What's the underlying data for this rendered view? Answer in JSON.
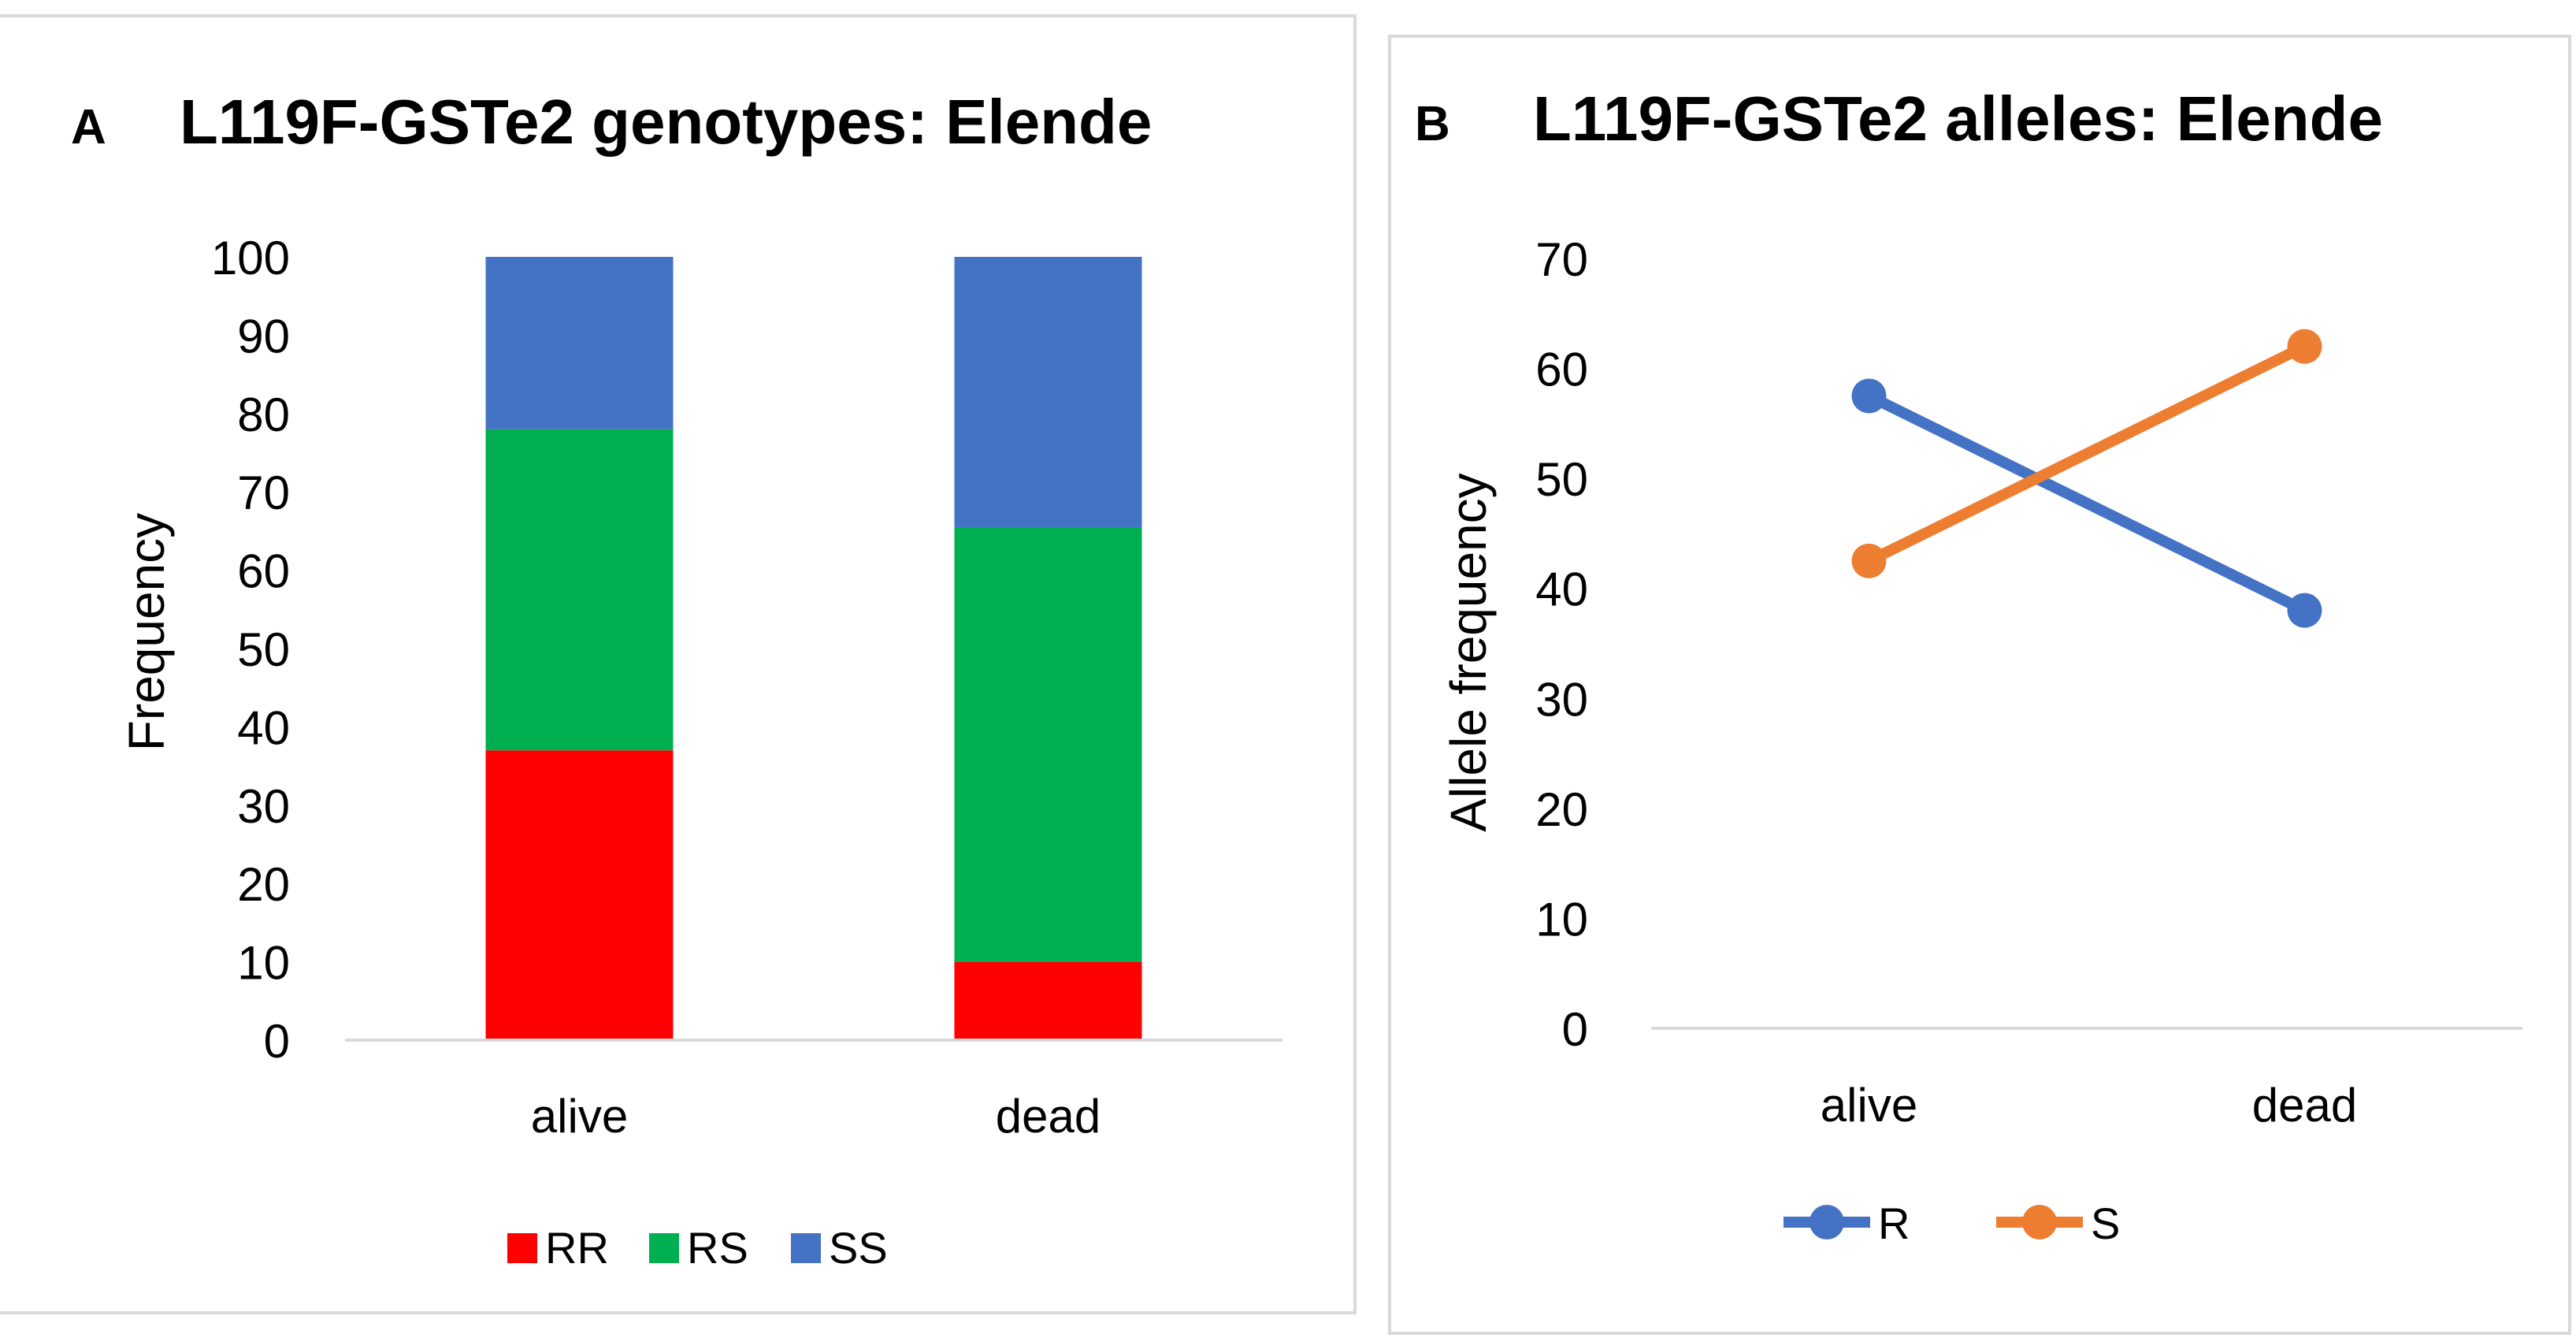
{
  "colors": {
    "RR": "#ff0000",
    "RS": "#00b050",
    "SS": "#4472c4",
    "R": "#4472c4",
    "S": "#ed7d31",
    "axis": "#d9d9d9",
    "text": "#000000"
  },
  "chart_data": [
    {
      "type": "bar",
      "stacked": true,
      "panel_label": "A",
      "title": "L119F-GSTe2 genotypes: Elende",
      "xlabel": "",
      "ylabel": "Frequency",
      "categories": [
        "alive",
        "dead"
      ],
      "ylim": [
        0,
        100
      ],
      "yticks": [
        0,
        10,
        20,
        30,
        40,
        50,
        60,
        70,
        80,
        90,
        100
      ],
      "series": [
        {
          "name": "RR",
          "values": [
            37,
            10
          ]
        },
        {
          "name": "RS",
          "values": [
            41,
            55.5
          ]
        },
        {
          "name": "SS",
          "values": [
            22,
            34.5
          ]
        }
      ],
      "legend": "bottom",
      "grid": false
    },
    {
      "type": "line",
      "panel_label": "B",
      "title": "L119F-GSTe2 alleles: Elende",
      "xlabel": "",
      "ylabel": "Allele frequency",
      "categories": [
        "alive",
        "dead"
      ],
      "ylim": [
        0,
        70
      ],
      "yticks": [
        0,
        10,
        20,
        30,
        40,
        50,
        60,
        70
      ],
      "series": [
        {
          "name": "R",
          "values": [
            57.5,
            38
          ]
        },
        {
          "name": "S",
          "values": [
            42.5,
            62
          ]
        }
      ],
      "legend": "bottom",
      "grid": false
    }
  ]
}
